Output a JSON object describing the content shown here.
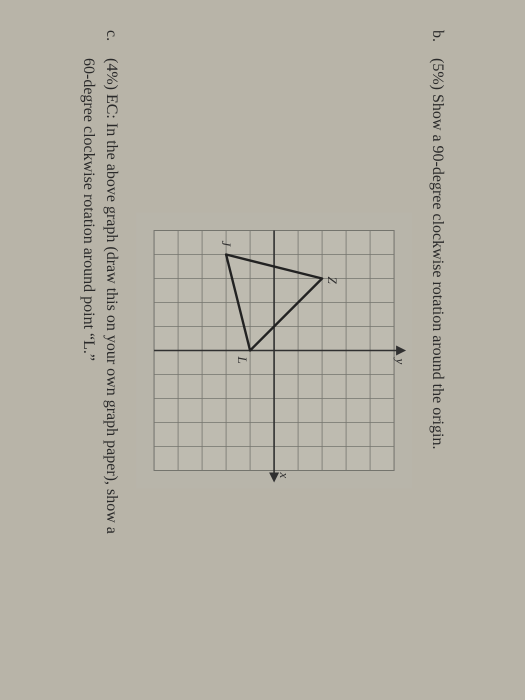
{
  "questions": {
    "b": {
      "label": "b.",
      "text": "(5%) Show a 90-degree clockwise rotation around the origin."
    },
    "c": {
      "label": "c.",
      "text_part1": "(4%) EC: In the above graph (draw this on your own graph paper), show a",
      "text_part2": "60-degree clockwise rotation around point “L.”"
    }
  },
  "graph": {
    "grid_cols": 10,
    "grid_rows": 10,
    "cell": 24,
    "axis_label_x": "x",
    "axis_label_y": "y",
    "origin_col": 5,
    "origin_row": 5,
    "grid_color": "#7a7a72",
    "axis_color": "#2a2a2a",
    "bg_color": "#c9c5b9",
    "triangle": {
      "stroke": "#1a1a1a",
      "stroke_width": 2.4,
      "vertices": {
        "Z": {
          "col": 2,
          "row": 3,
          "label": "Z",
          "label_dx": -2,
          "label_dy": -6
        },
        "J": {
          "col": 1,
          "row": 7,
          "label": "J",
          "label_dx": -14,
          "label_dy": 4
        },
        "L": {
          "col": 5,
          "row": 6,
          "label": "L",
          "label_dx": 6,
          "label_dy": 12
        }
      }
    }
  }
}
